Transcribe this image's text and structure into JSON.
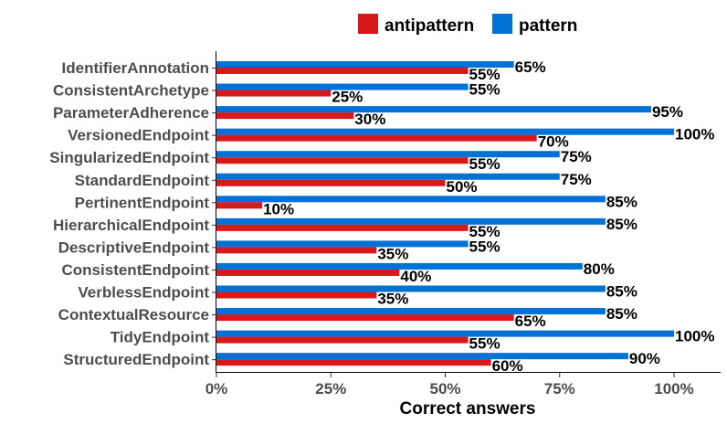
{
  "chart_data": {
    "type": "bar",
    "orientation": "horizontal",
    "categories": [
      "IdentifierAnnotation",
      "ConsistentArchetype",
      "ParameterAdherence",
      "VersionedEndpoint",
      "SingularizedEndpoint",
      "StandardEndpoint",
      "PertinentEndpoint",
      "HierarchicalEndpoint",
      "DescriptiveEndpoint",
      "ConsistentEndpoint",
      "VerblessEndpoint",
      "ContextualResource",
      "TidyEndpoint",
      "StructuredEndpoint"
    ],
    "series": [
      {
        "name": "antipattern",
        "color": "#d7191c",
        "values": [
          55,
          25,
          30,
          70,
          55,
          50,
          10,
          55,
          35,
          40,
          35,
          65,
          55,
          60
        ]
      },
      {
        "name": "pattern",
        "color": "#0072d6",
        "values": [
          65,
          55,
          95,
          100,
          75,
          75,
          85,
          85,
          55,
          80,
          85,
          85,
          100,
          90
        ]
      }
    ],
    "xlabel": "Correct answers",
    "ylabel": "",
    "xlim": [
      0,
      100
    ],
    "xticks": [
      "0%",
      "25%",
      "50%",
      "75%",
      "100%"
    ],
    "value_suffix": "%",
    "legend_position": "top",
    "grid": false
  }
}
